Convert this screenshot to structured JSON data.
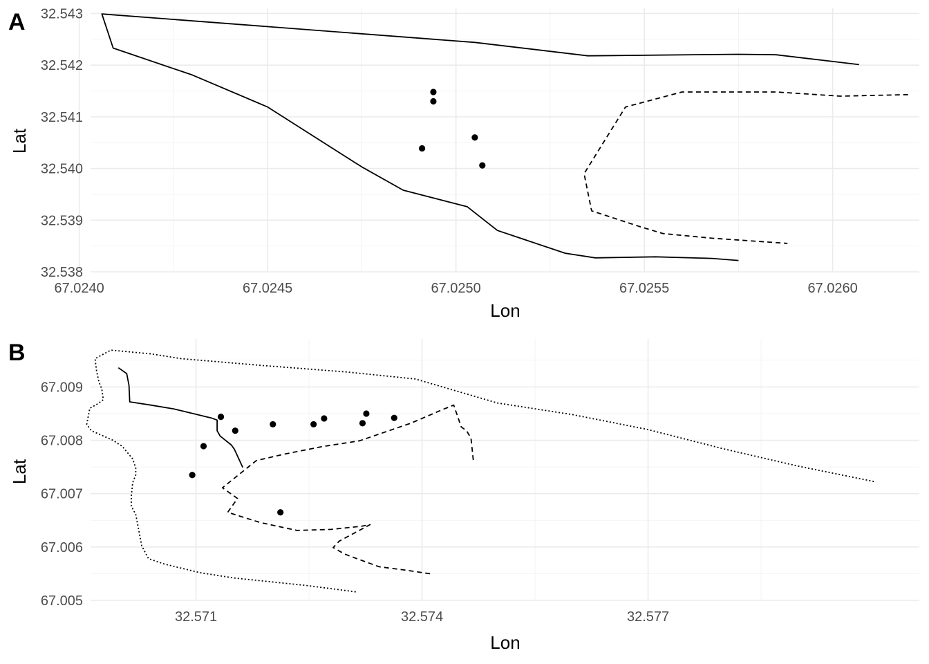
{
  "chart_data": [
    {
      "type": "line",
      "panel_tag": "A",
      "xlabel": "Lon",
      "ylabel": "Lat",
      "xlim": [
        67.02403,
        67.02623
      ],
      "ylim": [
        32.538,
        32.5431
      ],
      "x_ticks": [
        67.024,
        67.0245,
        67.025,
        67.0255,
        67.026
      ],
      "x_tick_labels": [
        "67.0240",
        "67.0245",
        "67.0250",
        "67.0255",
        "67.0260"
      ],
      "y_ticks": [
        32.538,
        32.539,
        32.54,
        32.541,
        32.542,
        32.543
      ],
      "y_tick_labels": [
        "32.538",
        "32.539",
        "32.540",
        "32.541",
        "32.542",
        "32.543"
      ],
      "grid": true,
      "series": [
        {
          "style": "solid",
          "points": [
            [
              67.02607,
              32.54201
            ],
            [
              67.02585,
              32.5422
            ],
            [
              67.02575,
              32.54221
            ],
            [
              67.02535,
              32.54218
            ],
            [
              67.02505,
              32.54244
            ],
            [
              67.02406,
              32.54299
            ],
            [
              67.02409,
              32.54233
            ],
            [
              67.0243,
              32.54181
            ],
            [
              67.0245,
              32.54119
            ],
            [
              67.02475,
              32.54003
            ],
            [
              67.02486,
              32.53958
            ],
            [
              67.02503,
              32.53926
            ],
            [
              67.02511,
              32.5388
            ],
            [
              67.02529,
              32.53836
            ],
            [
              67.02537,
              32.53827
            ],
            [
              67.02553,
              32.53829
            ],
            [
              67.02568,
              32.53826
            ],
            [
              67.02575,
              32.53822
            ]
          ]
        },
        {
          "style": "dashed",
          "points": [
            [
              67.0262,
              32.54143
            ],
            [
              67.02602,
              32.5414
            ],
            [
              67.02585,
              32.54148
            ],
            [
              67.0256,
              32.54148
            ],
            [
              67.02545,
              32.54119
            ],
            [
              67.02534,
              32.5399
            ],
            [
              67.02536,
              32.53918
            ],
            [
              67.02549,
              32.53887
            ],
            [
              67.02555,
              32.53874
            ],
            [
              67.02568,
              32.53865
            ],
            [
              67.02588,
              32.53855
            ]
          ]
        }
      ],
      "points": [
        [
          67.02494,
          32.54148
        ],
        [
          67.02494,
          32.5413
        ],
        [
          67.02491,
          32.54039
        ],
        [
          67.02505,
          32.5406
        ],
        [
          67.02507,
          32.54006
        ]
      ]
    },
    {
      "type": "line",
      "panel_tag": "B",
      "xlabel": "Lon",
      "ylabel": "Lat",
      "xlim": [
        32.5696,
        32.5806
      ],
      "ylim": [
        67.005,
        67.0099
      ],
      "x_ticks": [
        32.571,
        32.574,
        32.577
      ],
      "x_tick_labels": [
        "32.571",
        "32.574",
        "32.577"
      ],
      "y_ticks": [
        67.005,
        67.006,
        67.007,
        67.008,
        67.009
      ],
      "y_tick_labels": [
        "67.005",
        "67.006",
        "67.007",
        "67.008",
        "67.009"
      ],
      "grid": true,
      "series": [
        {
          "style": "solid",
          "points": [
            [
              32.56997,
              67.00936
            ],
            [
              32.57008,
              67.00925
            ],
            [
              32.57011,
              67.00903
            ],
            [
              32.57012,
              67.00872
            ],
            [
              32.5704,
              67.00866
            ],
            [
              32.5707,
              67.00859
            ],
            [
              32.57102,
              67.00848
            ],
            [
              32.5712,
              67.00842
            ],
            [
              32.57128,
              67.00838
            ],
            [
              32.57128,
              67.00818
            ],
            [
              32.57132,
              67.00808
            ],
            [
              32.57147,
              67.00791
            ],
            [
              32.57151,
              67.00783
            ],
            [
              32.57162,
              67.00749
            ]
          ]
        },
        {
          "style": "dashed",
          "points": [
            [
              32.57468,
              67.00763
            ],
            [
              32.57465,
              67.00804
            ],
            [
              32.57459,
              67.00818
            ],
            [
              32.57452,
              67.00825
            ],
            [
              32.57442,
              67.00866
            ],
            [
              32.57428,
              67.00858
            ],
            [
              32.57385,
              67.00832
            ],
            [
              32.57317,
              67.00799
            ],
            [
              32.57267,
              67.00788
            ],
            [
              32.57217,
              67.00774
            ],
            [
              32.5718,
              67.00762
            ],
            [
              32.57135,
              67.00711
            ],
            [
              32.57155,
              67.00691
            ],
            [
              32.57142,
              67.00665
            ],
            [
              32.57185,
              67.00646
            ],
            [
              32.57234,
              67.00631
            ],
            [
              32.57279,
              67.00633
            ],
            [
              32.5732,
              67.00639
            ],
            [
              32.57331,
              67.00642
            ],
            [
              32.5729,
              67.00611
            ],
            [
              32.57282,
              67.00599
            ],
            [
              32.57297,
              67.00587
            ],
            [
              32.5731,
              67.0058
            ],
            [
              32.57343,
              67.00563
            ],
            [
              32.57376,
              67.00557
            ],
            [
              32.57415,
              67.00549
            ]
          ]
        },
        {
          "style": "dotted",
          "points": [
            [
              32.57312,
              67.00516
            ],
            [
              32.57246,
              67.00528
            ],
            [
              32.5715,
              67.00542
            ],
            [
              32.57105,
              67.00552
            ],
            [
              32.57058,
              67.00568
            ],
            [
              32.57037,
              67.00578
            ],
            [
              32.57028,
              67.00602
            ],
            [
              32.5702,
              67.00661
            ],
            [
              32.57014,
              67.00677
            ],
            [
              32.57014,
              67.00695
            ],
            [
              32.57016,
              67.00721
            ],
            [
              32.5702,
              67.00735
            ],
            [
              32.5702,
              67.00748
            ],
            [
              32.57016,
              67.00765
            ],
            [
              32.57002,
              67.00789
            ],
            [
              32.56995,
              67.00795
            ],
            [
              32.5699,
              67.008
            ],
            [
              32.56961,
              67.00818
            ],
            [
              32.56955,
              67.0083
            ],
            [
              32.56959,
              67.0086
            ],
            [
              32.56969,
              67.00868
            ],
            [
              32.56977,
              67.00876
            ],
            [
              32.56975,
              67.00896
            ],
            [
              32.56971,
              67.0091
            ],
            [
              32.56968,
              67.0093
            ],
            [
              32.56966,
              67.00953
            ],
            [
              32.56987,
              67.00969
            ],
            [
              32.5704,
              67.00962
            ],
            [
              32.5708,
              67.00953
            ],
            [
              32.5719,
              67.0094
            ],
            [
              32.573,
              67.00928
            ],
            [
              32.57391,
              67.00915
            ],
            [
              32.575,
              67.0087
            ],
            [
              32.576,
              67.00848
            ],
            [
              32.577,
              67.0082
            ],
            [
              32.578,
              67.00784
            ],
            [
              32.57898,
              67.00752
            ],
            [
              32.58002,
              67.00722
            ]
          ]
        }
      ],
      "points": [
        [
          32.57133,
          67.00844
        ],
        [
          32.57152,
          67.00818
        ],
        [
          32.57202,
          67.0083
        ],
        [
          32.57256,
          67.0083
        ],
        [
          32.5727,
          67.00841
        ],
        [
          32.57321,
          67.00832
        ],
        [
          32.57326,
          67.0085
        ],
        [
          32.57363,
          67.00842
        ],
        [
          32.5711,
          67.00789
        ],
        [
          32.57095,
          67.00735
        ],
        [
          32.57212,
          67.00665
        ]
      ]
    }
  ]
}
